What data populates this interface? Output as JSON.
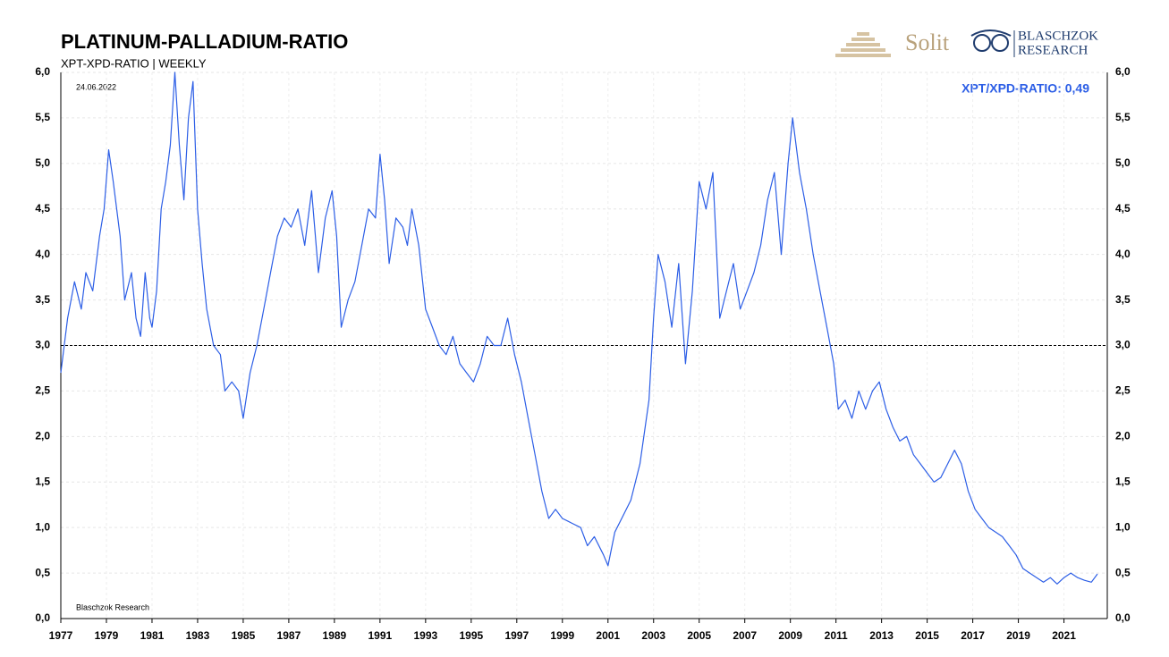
{
  "chart_data": {
    "type": "line",
    "title": "PLATINUM-PALLADIUM-RATIO",
    "subtitle": "XPT-XPD-RATIO | WEEKLY",
    "date_note": "24.06.2022",
    "annotation": "XPT/XPD-RATIO: 0,49",
    "source": "Blaschzok  Research",
    "color": "#2c5ee6",
    "reference_line": 3,
    "grid": true,
    "xlim": [
      1977,
      2022.9
    ],
    "xticks": [
      1977,
      1979,
      1981,
      1983,
      1985,
      1987,
      1989,
      1991,
      1993,
      1995,
      1997,
      1999,
      2001,
      2003,
      2005,
      2007,
      2009,
      2011,
      2013,
      2015,
      2017,
      2019,
      2021
    ],
    "ylim": [
      0,
      6
    ],
    "yticks": [
      {
        "value": 0,
        "label": "0,0"
      },
      {
        "value": 0.5,
        "label": "0,5"
      },
      {
        "value": 1,
        "label": "1,0"
      },
      {
        "value": 1.5,
        "label": "1,5"
      },
      {
        "value": 2,
        "label": "2,0"
      },
      {
        "value": 2.5,
        "label": "2,5"
      },
      {
        "value": 3,
        "label": "3,0"
      },
      {
        "value": 3.5,
        "label": "3,5"
      },
      {
        "value": 4,
        "label": "4,0"
      },
      {
        "value": 4.5,
        "label": "4,5"
      },
      {
        "value": 5,
        "label": "5,0"
      },
      {
        "value": 5.5,
        "label": "5,5"
      },
      {
        "value": 6,
        "label": "6,0"
      }
    ],
    "x": [
      1977.0,
      1977.3,
      1977.6,
      1977.9,
      1978.1,
      1978.4,
      1978.7,
      1978.9,
      1979.1,
      1979.3,
      1979.6,
      1979.8,
      1980.1,
      1980.3,
      1980.5,
      1980.7,
      1980.9,
      1981.0,
      1981.2,
      1981.4,
      1981.6,
      1981.8,
      1982.0,
      1982.2,
      1982.4,
      1982.6,
      1982.8,
      1983.0,
      1983.2,
      1983.4,
      1983.7,
      1984.0,
      1984.2,
      1984.5,
      1984.8,
      1985.0,
      1985.3,
      1985.6,
      1985.9,
      1986.2,
      1986.5,
      1986.8,
      1987.1,
      1987.4,
      1987.7,
      1988.0,
      1988.3,
      1988.6,
      1988.9,
      1989.1,
      1989.3,
      1989.6,
      1989.9,
      1990.2,
      1990.5,
      1990.8,
      1991.0,
      1991.2,
      1991.4,
      1991.7,
      1992.0,
      1992.2,
      1992.4,
      1992.7,
      1993.0,
      1993.3,
      1993.6,
      1993.9,
      1994.2,
      1994.5,
      1994.8,
      1995.1,
      1995.4,
      1995.7,
      1996.0,
      1996.3,
      1996.6,
      1996.9,
      1997.2,
      1997.5,
      1997.8,
      1998.1,
      1998.4,
      1998.7,
      1999.0,
      1999.4,
      1999.8,
      2000.1,
      2000.4,
      2000.8,
      2001.0,
      2001.3,
      2001.6,
      2002.0,
      2002.4,
      2002.8,
      2003.0,
      2003.2,
      2003.5,
      2003.8,
      2004.1,
      2004.4,
      2004.7,
      2005.0,
      2005.3,
      2005.6,
      2005.9,
      2006.2,
      2006.5,
      2006.8,
      2007.1,
      2007.4,
      2007.7,
      2008.0,
      2008.3,
      2008.6,
      2008.9,
      2009.1,
      2009.4,
      2009.7,
      2010.0,
      2010.3,
      2010.6,
      2010.9,
      2011.1,
      2011.4,
      2011.7,
      2012.0,
      2012.3,
      2012.6,
      2012.9,
      2013.2,
      2013.5,
      2013.8,
      2014.1,
      2014.4,
      2014.7,
      2015.0,
      2015.3,
      2015.6,
      2015.9,
      2016.2,
      2016.5,
      2016.8,
      2017.1,
      2017.4,
      2017.7,
      2018.0,
      2018.3,
      2018.6,
      2018.9,
      2019.2,
      2019.5,
      2019.8,
      2020.1,
      2020.4,
      2020.7,
      2021.0,
      2021.3,
      2021.6,
      2021.9,
      2022.2,
      2022.47
    ],
    "values": [
      2.7,
      3.3,
      3.7,
      3.4,
      3.8,
      3.6,
      4.2,
      4.5,
      5.15,
      4.8,
      4.2,
      3.5,
      3.8,
      3.3,
      3.1,
      3.8,
      3.3,
      3.2,
      3.6,
      4.5,
      4.8,
      5.2,
      6.0,
      5.2,
      4.6,
      5.5,
      5.9,
      4.5,
      3.9,
      3.4,
      3.0,
      2.9,
      2.5,
      2.6,
      2.5,
      2.2,
      2.7,
      3.0,
      3.4,
      3.8,
      4.2,
      4.4,
      4.3,
      4.5,
      4.1,
      4.7,
      3.8,
      4.4,
      4.7,
      4.2,
      3.2,
      3.5,
      3.7,
      4.1,
      4.5,
      4.4,
      5.1,
      4.6,
      3.9,
      4.4,
      4.3,
      4.1,
      4.5,
      4.1,
      3.4,
      3.2,
      3.0,
      2.9,
      3.1,
      2.8,
      2.7,
      2.6,
      2.8,
      3.1,
      3.0,
      3.0,
      3.3,
      2.9,
      2.6,
      2.2,
      1.8,
      1.4,
      1.1,
      1.2,
      1.1,
      1.05,
      1.0,
      0.8,
      0.9,
      0.7,
      0.58,
      0.95,
      1.1,
      1.3,
      1.7,
      2.4,
      3.3,
      4.0,
      3.7,
      3.2,
      3.9,
      2.8,
      3.6,
      4.8,
      4.5,
      4.9,
      3.3,
      3.6,
      3.9,
      3.4,
      3.6,
      3.8,
      4.1,
      4.6,
      4.9,
      4.0,
      5.0,
      5.5,
      4.9,
      4.5,
      4.0,
      3.6,
      3.2,
      2.8,
      2.3,
      2.4,
      2.2,
      2.5,
      2.3,
      2.5,
      2.6,
      2.3,
      2.1,
      1.95,
      2.0,
      1.8,
      1.7,
      1.6,
      1.5,
      1.55,
      1.7,
      1.85,
      1.7,
      1.4,
      1.2,
      1.1,
      1.0,
      0.95,
      0.9,
      0.8,
      0.7,
      0.55,
      0.5,
      0.45,
      0.4,
      0.45,
      0.38,
      0.45,
      0.5,
      0.45,
      0.42,
      0.4,
      0.49
    ]
  },
  "branding": {
    "solit": "Solit",
    "brand_line1": "BLASCHZOK",
    "brand_line2": "RESEARCH"
  }
}
